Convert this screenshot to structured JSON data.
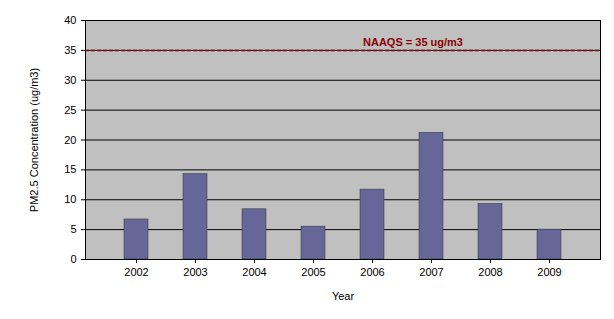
{
  "chart_data": {
    "type": "bar",
    "categories": [
      "2002",
      "2003",
      "2004",
      "2005",
      "2006",
      "2007",
      "2008",
      "2009"
    ],
    "values": [
      6.7,
      14.3,
      8.4,
      5.5,
      11.7,
      21.2,
      9.3,
      5.0
    ],
    "color": "#666699",
    "x_label": "Year",
    "y_label": "PM2.5 Concentration (ug/m3)",
    "ylim": [
      0,
      40
    ],
    "yticks": [
      0,
      5,
      10,
      15,
      20,
      25,
      30,
      35,
      40
    ],
    "grid": true,
    "annotations": [
      {
        "text": "NAAQS = 35 ug/m3",
        "y": 35,
        "color": "#8b0000",
        "line_style": "dashed"
      }
    ]
  }
}
